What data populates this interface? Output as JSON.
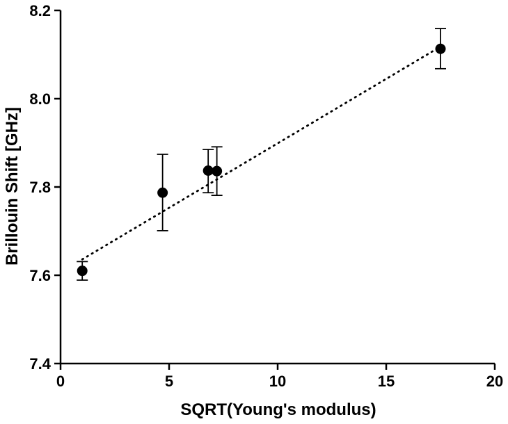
{
  "chart_data": {
    "type": "scatter",
    "title": "",
    "xlabel": "SQRT(Young's modulus)",
    "ylabel": "Brillouin Shift [GHz]",
    "xlim": [
      0,
      20
    ],
    "ylim": [
      7.4,
      8.2
    ],
    "x_ticks": [
      0,
      5,
      10,
      15,
      20
    ],
    "x_tick_labels": [
      "0",
      "5",
      "10",
      "15",
      "20"
    ],
    "y_ticks": [
      7.4,
      7.6,
      7.8,
      8.0,
      8.2
    ],
    "y_tick_labels": [
      "7.4",
      "7.6",
      "7.8",
      "8.0",
      "8.2"
    ],
    "grid": false,
    "legend": "none",
    "marker_color": "#000000",
    "points": [
      {
        "x": 1.0,
        "y": 7.61,
        "err_low": 0.021,
        "err_high": 0.021
      },
      {
        "x": 4.7,
        "y": 7.787,
        "err_low": 0.086,
        "err_high": 0.087
      },
      {
        "x": 6.8,
        "y": 7.837,
        "err_low": 0.05,
        "err_high": 0.048
      },
      {
        "x": 7.2,
        "y": 7.836,
        "err_low": 0.055,
        "err_high": 0.055
      },
      {
        "x": 17.5,
        "y": 8.113,
        "err_low": 0.045,
        "err_high": 0.046
      }
    ],
    "fit_line": {
      "style": "dotted",
      "x": [
        1.0,
        17.5
      ],
      "y": [
        7.636,
        8.118
      ]
    }
  }
}
